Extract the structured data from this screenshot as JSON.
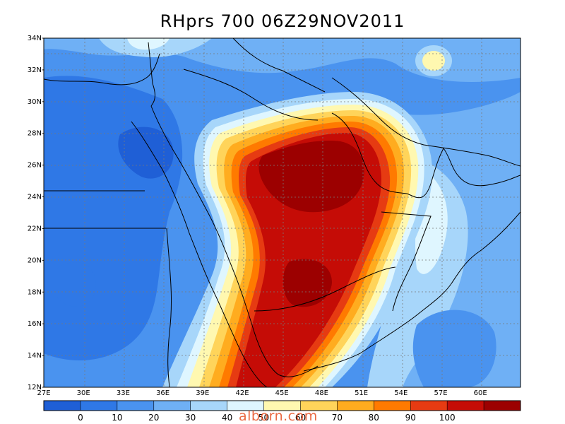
{
  "title": "RHprs 700 06Z29NOV2011",
  "watermark": "alborn.com",
  "lat_ticks": [
    "12N",
    "14N",
    "16N",
    "18N",
    "20N",
    "22N",
    "24N",
    "26N",
    "28N",
    "30N",
    "32N",
    "34N"
  ],
  "lon_ticks": [
    "27E",
    "30E",
    "33E",
    "36E",
    "39E",
    "42E",
    "45E",
    "48E",
    "51E",
    "54E",
    "57E",
    "60E"
  ],
  "colorbar": {
    "colors": [
      "#1f5fd6",
      "#2f78e6",
      "#4a93ef",
      "#6fb0f5",
      "#a7d6fa",
      "#dff6ff",
      "#fff8b0",
      "#ffd45a",
      "#ffac1f",
      "#ff7a00",
      "#e63b12",
      "#c50c06",
      "#9c0000"
    ],
    "labels": [
      "0",
      "10",
      "20",
      "30",
      "40",
      "50",
      "60",
      "70",
      "80",
      "90",
      "100"
    ]
  },
  "fields": {
    "variable": "RHprs",
    "level": "700",
    "time": "06Z29NOV2011"
  }
}
